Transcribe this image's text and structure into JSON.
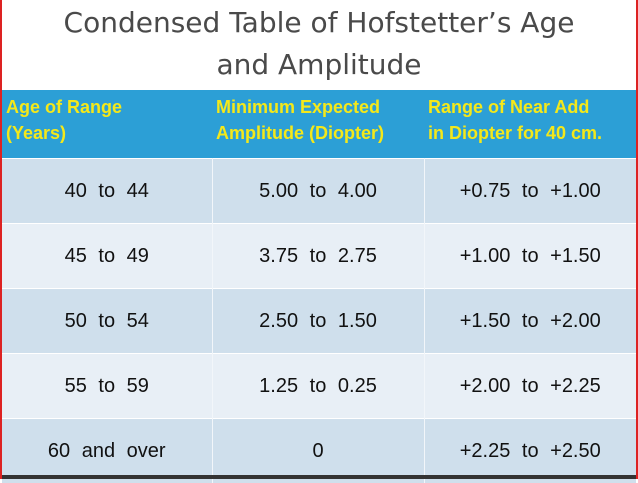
{
  "header": {
    "title": [
      "Condensed Table of Hofstetter’s Age",
      "and Amplitude"
    ]
  },
  "table": {
    "columns": [
      [
        "Age of Range",
        "(Years)"
      ],
      [
        "Minimum Expected",
        "Amplitude (Diopter)"
      ],
      [
        "Range of Near Add",
        "in Diopter for 40 cm."
      ]
    ],
    "rows": [
      [
        "40 to 44",
        "5.00 to 4.00",
        "+0.75 to +1.00"
      ],
      [
        "45 to 49",
        "3.75 to 2.75",
        "+1.00 to +1.50"
      ],
      [
        "50 to 54",
        "2.50 to 1.50",
        "+1.50 to +2.00"
      ],
      [
        "55 to 59",
        "1.25 to 0.25",
        "+2.00 to +2.25"
      ],
      [
        "60 and over",
        "0",
        "+2.25 to +2.50"
      ]
    ]
  }
}
